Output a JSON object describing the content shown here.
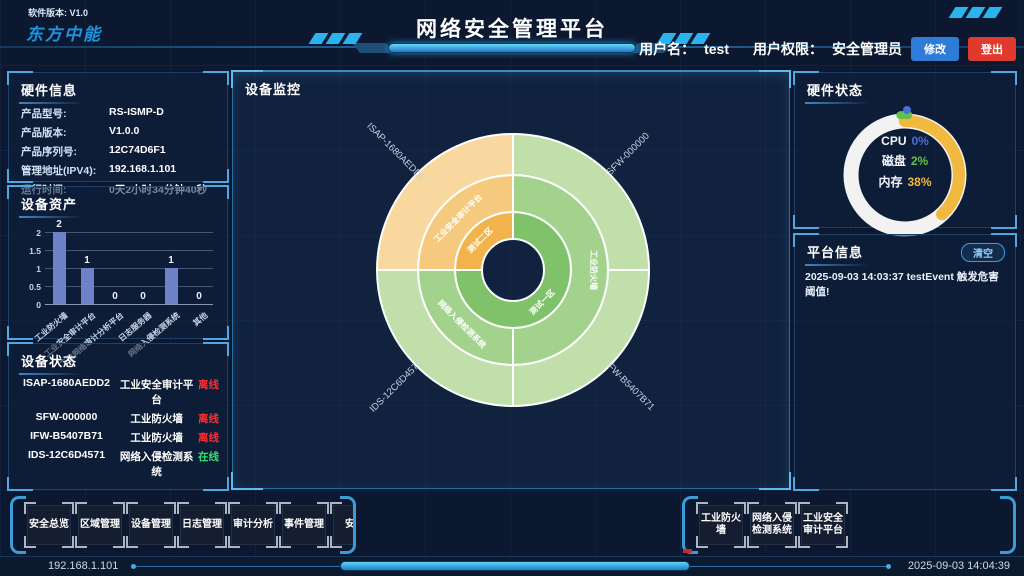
{
  "header": {
    "version": "软件版本: V1.0",
    "logo": "东方中能",
    "title": "网络安全管理平台",
    "username_label": "用户名：",
    "username": "test",
    "role_label": "用户权限：",
    "role": "安全管理员",
    "modify_btn": "修改",
    "logout_btn": "登出"
  },
  "hardware_info": {
    "title": "硬件信息",
    "rows": [
      {
        "label": "产品型号:",
        "value": "RS-ISMP-D"
      },
      {
        "label": "产品版本:",
        "value": "V1.0.0"
      },
      {
        "label": "产品序列号:",
        "value": "12C74D6F1"
      },
      {
        "label": "管理地址(IPV4):",
        "value": "192.168.1.101"
      },
      {
        "label": "运行时间:",
        "value": "0天2小时34分钟40秒"
      }
    ]
  },
  "device_assets": {
    "title": "设备资产"
  },
  "device_status": {
    "title": "设备状态",
    "rows": [
      {
        "name": "ISAP-1680AEDD2",
        "type": "工业安全审计平台",
        "status": "离线",
        "online": false
      },
      {
        "name": "SFW-000000",
        "type": "工业防火墙",
        "status": "离线",
        "online": false
      },
      {
        "name": "IFW-B5407B71",
        "type": "工业防火墙",
        "status": "离线",
        "online": false
      },
      {
        "name": "IDS-12C6D4571",
        "type": "网络入侵检测系统",
        "status": "在线",
        "online": true
      }
    ]
  },
  "device_monitor": {
    "title": "设备监控"
  },
  "hardware_status": {
    "title": "硬件状态"
  },
  "platform_info": {
    "title": "平台信息",
    "clear_btn": "清空",
    "messages": [
      "2025-09-03 14:03:37 testEvent 触发危害阈值!"
    ]
  },
  "nav": {
    "left_buttons": [
      "安全总览",
      "区域管理",
      "设备管理",
      "日志管理",
      "审计分析",
      "事件管理",
      "安全"
    ],
    "right_buttons": [
      "工业防火墙",
      "网络入侵检测系统",
      "工业安全审计平台"
    ]
  },
  "status_bar": {
    "ip": "192.168.1.101",
    "datetime": "2025-09-03 14:04:39"
  },
  "chart_data": [
    {
      "id": "device-assets-bar",
      "type": "bar",
      "title": "设备资产",
      "categories": [
        "工业防火墙",
        "工业安全审计平台",
        "工业网络审计分析平台",
        "日志服务器",
        "网络入侵检测系统",
        "其他"
      ],
      "values": [
        2,
        1,
        0,
        0,
        1,
        0
      ],
      "xlabel": "",
      "ylabel": "",
      "ylim": [
        0,
        2
      ],
      "yticks": [
        0,
        0.5,
        1,
        1.5,
        2
      ],
      "bar_color": "#6e82c8",
      "grid": true,
      "legend_position": "none"
    },
    {
      "id": "device-monitor-sunburst",
      "type": "pie",
      "variant": "sunburst",
      "title": "设备监控",
      "rings": {
        "inner": [
          {
            "label": "测试一区",
            "start_deg": 0,
            "end_deg": 270,
            "color": "#7fc269"
          },
          {
            "label": "测试二区",
            "start_deg": 270,
            "end_deg": 360,
            "color": "#f2b24c"
          }
        ],
        "middle": [
          {
            "label": "工业防火墙",
            "start_deg": 0,
            "end_deg": 180,
            "color": "#a2d28c"
          },
          {
            "label": "网络入侵检测系统",
            "start_deg": 180,
            "end_deg": 270,
            "color": "#a2d28c"
          },
          {
            "label": "工业安全审计平台",
            "start_deg": 270,
            "end_deg": 360,
            "color": "#f6ca7e"
          }
        ],
        "outer": [
          {
            "label": "SFW-000000",
            "start_deg": 0,
            "end_deg": 90,
            "color": "#c0dfaa"
          },
          {
            "label": "IFW-B5407B71",
            "start_deg": 90,
            "end_deg": 180,
            "color": "#c0dfaa"
          },
          {
            "label": "IDS-12C6D4571",
            "start_deg": 180,
            "end_deg": 270,
            "color": "#c0dfaa"
          },
          {
            "label": "ISAP-1680AEDD2",
            "start_deg": 270,
            "end_deg": 360,
            "color": "#f9d89f"
          }
        ]
      }
    },
    {
      "id": "hardware-usage-gauge",
      "type": "pie",
      "variant": "ring-gauge",
      "title": "硬件状态",
      "track_color": "#f2f2f2",
      "metrics": [
        {
          "label": "CPU",
          "pct": 0,
          "display": "0%",
          "color": "#4a6fd4"
        },
        {
          "label": "磁盘",
          "pct": 2,
          "display": "2%",
          "color": "#67bf4b"
        },
        {
          "label": "内存",
          "pct": 38,
          "display": "38%",
          "color": "#f1b93f"
        }
      ]
    }
  ]
}
